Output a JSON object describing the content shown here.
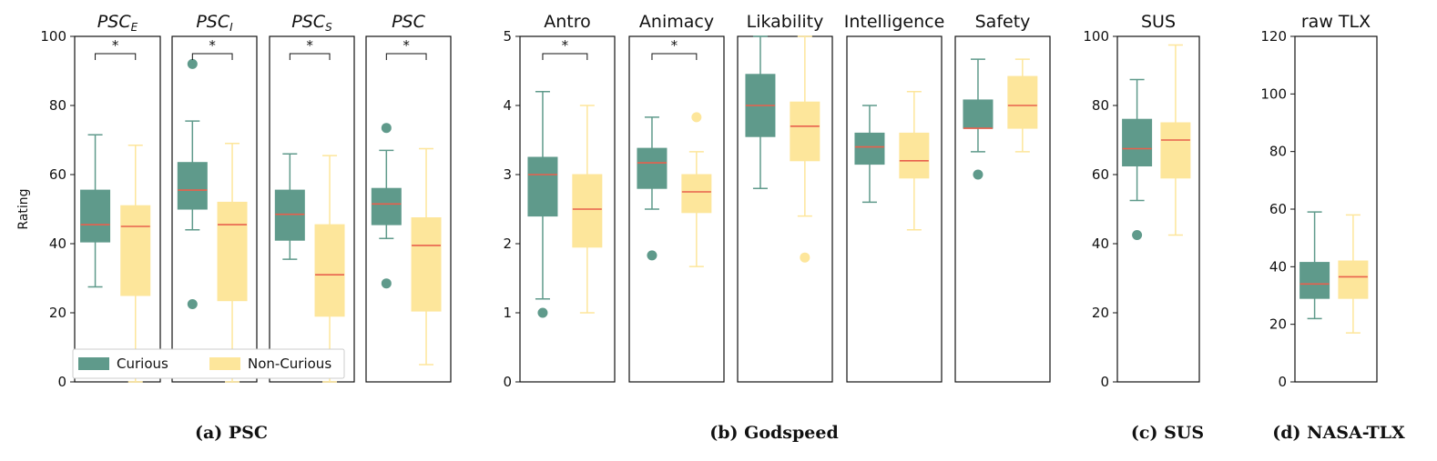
{
  "figure": {
    "captions": [
      "(a) PSC",
      "(b) Godspeed",
      "(c) SUS",
      "(d) NASA-TLX"
    ]
  },
  "legend": {
    "entries": [
      {
        "name": "Curious",
        "color": "#5f9a8b"
      },
      {
        "name": "Non-Curious",
        "color": "#fde69b"
      }
    ],
    "placement": "bottom, spanning PSC panels"
  },
  "colors": {
    "curious_fill": "#5f9a8b",
    "curious_line": "#5f9a8b",
    "noncurious_fill": "#fde69b",
    "noncurious_line": "#fde69b",
    "median": "#e8604c"
  },
  "chart_data": [
    {
      "type": "box",
      "title": "PSC_E",
      "title_main": "PSC",
      "title_sub": "E",
      "ylabel": "Rating",
      "ylim": [
        0,
        100
      ],
      "yticks": [
        0,
        20,
        40,
        60,
        80,
        100
      ],
      "group": "(a) PSC",
      "significance": "*",
      "series": [
        {
          "name": "Curious",
          "whisker_low": 27.5,
          "q1": 40.5,
          "median": 45.5,
          "q3": 55.5,
          "whisker_high": 71.5,
          "outliers": []
        },
        {
          "name": "Non-Curious",
          "whisker_low": 0,
          "q1": 25,
          "median": 45,
          "q3": 51,
          "whisker_high": 68.5,
          "outliers": []
        }
      ]
    },
    {
      "type": "box",
      "title": "PSC_I",
      "title_main": "PSC",
      "title_sub": "I",
      "ylim": [
        0,
        100
      ],
      "group": "(a) PSC",
      "significance": "*",
      "series": [
        {
          "name": "Curious",
          "whisker_low": 44,
          "q1": 50,
          "median": 55.5,
          "q3": 63.5,
          "whisker_high": 75.5,
          "outliers": [
            92,
            22.5
          ]
        },
        {
          "name": "Non-Curious",
          "whisker_low": 0,
          "q1": 23.5,
          "median": 45.5,
          "q3": 52,
          "whisker_high": 69,
          "outliers": []
        }
      ]
    },
    {
      "type": "box",
      "title": "PSC_S",
      "title_main": "PSC",
      "title_sub": "S",
      "ylim": [
        0,
        100
      ],
      "group": "(a) PSC",
      "significance": "*",
      "series": [
        {
          "name": "Curious",
          "whisker_low": 35.5,
          "q1": 41,
          "median": 48.5,
          "q3": 55.5,
          "whisker_high": 66,
          "outliers": []
        },
        {
          "name": "Non-Curious",
          "whisker_low": 0,
          "q1": 19,
          "median": 31,
          "q3": 45.5,
          "whisker_high": 65.5,
          "outliers": []
        }
      ]
    },
    {
      "type": "box",
      "title": "PSC",
      "title_main": "PSC",
      "title_sub": "",
      "ylim": [
        0,
        100
      ],
      "group": "(a) PSC",
      "significance": "*",
      "series": [
        {
          "name": "Curious",
          "whisker_low": 41.5,
          "q1": 45.5,
          "median": 51.5,
          "q3": 56,
          "whisker_high": 67,
          "outliers": [
            73.5,
            28.5
          ]
        },
        {
          "name": "Non-Curious",
          "whisker_low": 5,
          "q1": 20.5,
          "median": 39.5,
          "q3": 47.5,
          "whisker_high": 67.5,
          "outliers": []
        }
      ]
    },
    {
      "type": "box",
      "title": "Antro",
      "ylim": [
        0,
        5
      ],
      "yticks": [
        0,
        1,
        2,
        3,
        4,
        5
      ],
      "group": "(b) Godspeed",
      "significance": "*",
      "series": [
        {
          "name": "Curious",
          "whisker_low": 1.2,
          "q1": 2.4,
          "median": 3.0,
          "q3": 3.25,
          "whisker_high": 4.2,
          "outliers": [
            1.0
          ]
        },
        {
          "name": "Non-Curious",
          "whisker_low": 1.0,
          "q1": 1.95,
          "median": 2.5,
          "q3": 3.0,
          "whisker_high": 4.0,
          "outliers": []
        }
      ]
    },
    {
      "type": "box",
      "title": "Animacy",
      "ylim": [
        0,
        5
      ],
      "group": "(b) Godspeed",
      "significance": "*",
      "series": [
        {
          "name": "Curious",
          "whisker_low": 2.5,
          "q1": 2.8,
          "median": 3.17,
          "q3": 3.38,
          "whisker_high": 3.83,
          "outliers": [
            1.83
          ]
        },
        {
          "name": "Non-Curious",
          "whisker_low": 1.67,
          "q1": 2.45,
          "median": 2.75,
          "q3": 3.0,
          "whisker_high": 3.33,
          "outliers": [
            3.83
          ]
        }
      ]
    },
    {
      "type": "box",
      "title": "Likability",
      "ylim": [
        0,
        5
      ],
      "group": "(b) Godspeed",
      "significance": "",
      "series": [
        {
          "name": "Curious",
          "whisker_low": 2.8,
          "q1": 3.55,
          "median": 4.0,
          "q3": 4.45,
          "whisker_high": 5.0,
          "outliers": []
        },
        {
          "name": "Non-Curious",
          "whisker_low": 2.4,
          "q1": 3.2,
          "median": 3.7,
          "q3": 4.05,
          "whisker_high": 5.0,
          "outliers": [
            1.8
          ]
        }
      ]
    },
    {
      "type": "box",
      "title": "Intelligence",
      "ylim": [
        0,
        5
      ],
      "group": "(b) Godspeed",
      "significance": "",
      "series": [
        {
          "name": "Curious",
          "whisker_low": 2.6,
          "q1": 3.15,
          "median": 3.4,
          "q3": 3.6,
          "whisker_high": 4.0,
          "outliers": []
        },
        {
          "name": "Non-Curious",
          "whisker_low": 2.2,
          "q1": 2.95,
          "median": 3.2,
          "q3": 3.6,
          "whisker_high": 4.2,
          "outliers": []
        }
      ]
    },
    {
      "type": "box",
      "title": "Safety",
      "ylim": [
        0,
        5
      ],
      "group": "(b) Godspeed",
      "significance": "",
      "series": [
        {
          "name": "Curious",
          "whisker_low": 3.33,
          "q1": 3.67,
          "median": 3.67,
          "q3": 4.08,
          "whisker_high": 4.67,
          "outliers": [
            3.0
          ]
        },
        {
          "name": "Non-Curious",
          "whisker_low": 3.33,
          "q1": 3.67,
          "median": 4.0,
          "q3": 4.42,
          "whisker_high": 4.67,
          "outliers": []
        }
      ]
    },
    {
      "type": "box",
      "title": "SUS",
      "ylim": [
        0,
        100
      ],
      "yticks": [
        0,
        20,
        40,
        60,
        80,
        100
      ],
      "group": "(c) SUS",
      "significance": "",
      "series": [
        {
          "name": "Curious",
          "whisker_low": 52.5,
          "q1": 62.5,
          "median": 67.5,
          "q3": 76,
          "whisker_high": 87.5,
          "outliers": [
            42.5
          ]
        },
        {
          "name": "Non-Curious",
          "whisker_low": 42.5,
          "q1": 59,
          "median": 70,
          "q3": 75,
          "whisker_high": 97.5,
          "outliers": []
        }
      ]
    },
    {
      "type": "box",
      "title": "raw TLX",
      "ylim": [
        0,
        120
      ],
      "yticks": [
        0,
        20,
        40,
        60,
        80,
        100,
        120
      ],
      "group": "(d) NASA-TLX",
      "significance": "",
      "series": [
        {
          "name": "Curious",
          "whisker_low": 22,
          "q1": 29,
          "median": 34,
          "q3": 41.5,
          "whisker_high": 59,
          "outliers": []
        },
        {
          "name": "Non-Curious",
          "whisker_low": 17,
          "q1": 29,
          "median": 36.5,
          "q3": 42,
          "whisker_high": 58,
          "outliers": []
        }
      ]
    }
  ]
}
